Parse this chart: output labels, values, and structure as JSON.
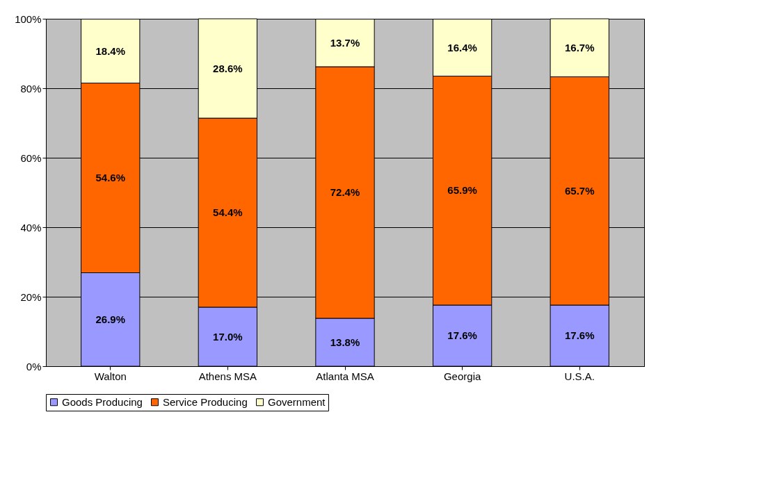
{
  "chart_data": {
    "type": "bar",
    "stacked": true,
    "grid": "y",
    "legend": "bottom",
    "categories": [
      "Walton",
      "Athens MSA",
      "Atlanta MSA",
      "Georgia",
      "U.S.A."
    ],
    "series": [
      {
        "name": "Goods Producing",
        "color": "#9999ff",
        "values": [
          26.9,
          17.0,
          13.8,
          17.6,
          17.6
        ],
        "value_labels": [
          "26.9%",
          "17.0%",
          "13.8%",
          "17.6%",
          "17.6%"
        ]
      },
      {
        "name": "Service Producing",
        "color": "#ff6600",
        "values": [
          54.6,
          54.4,
          72.4,
          65.9,
          65.7
        ],
        "value_labels": [
          "54.6%",
          "54.4%",
          "72.4%",
          "65.9%",
          "65.7%"
        ]
      },
      {
        "name": "Government",
        "color": "#ffffcc",
        "values": [
          18.4,
          28.6,
          13.7,
          16.4,
          16.7
        ],
        "value_labels": [
          "18.4%",
          "28.6%",
          "13.7%",
          "16.4%",
          "16.7%"
        ]
      }
    ],
    "ylim": [
      0,
      100
    ],
    "yticks": [
      {
        "value": 0,
        "label": "0%"
      },
      {
        "value": 20,
        "label": "20%"
      },
      {
        "value": 40,
        "label": "40%"
      },
      {
        "value": 60,
        "label": "60%"
      },
      {
        "value": 80,
        "label": "80%"
      },
      {
        "value": 100,
        "label": "100%"
      }
    ]
  }
}
